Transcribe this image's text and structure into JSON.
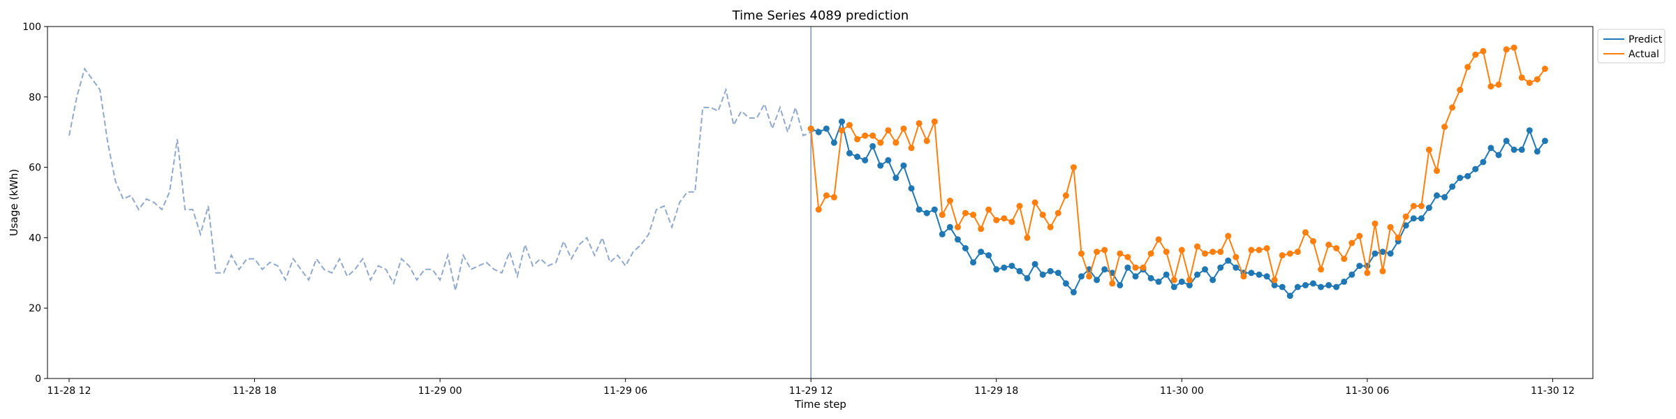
{
  "chart_data": {
    "type": "line",
    "title": "Time Series 4089 prediction",
    "xlabel": "Time step",
    "ylabel": "Usage (kWh)",
    "ylim": [
      0,
      100
    ],
    "yticks": [
      0,
      20,
      40,
      60,
      80,
      100
    ],
    "xlim": [
      "2024-11-28 11:18",
      "2024-11-30 13:18"
    ],
    "xticks": [
      "2024-11-28 12:00",
      "2024-11-28 18:00",
      "2024-11-29 00:00",
      "2024-11-29 06:00",
      "2024-11-29 12:00",
      "2024-11-29 18:00",
      "2024-11-30 00:00",
      "2024-11-30 06:00",
      "2024-11-30 12:00"
    ],
    "xtick_labels": [
      "11-28 12",
      "11-28 18",
      "11-29 00",
      "11-29 06",
      "11-29 12",
      "11-29 18",
      "11-30 00",
      "11-30 06",
      "11-30 12"
    ],
    "x_start": "2024-11-28 12:00",
    "x_step_minutes": 15,
    "forecast_start": "2024-11-29 12:00",
    "legend_position": "top-right",
    "grid": false,
    "colors": {
      "history": "#8fa8cc",
      "predict": "#1f77b4",
      "actual": "#ff7f0e",
      "divider": "#7b93c4"
    },
    "history": [
      69,
      80,
      88,
      85,
      82,
      67,
      56,
      51,
      52,
      48,
      51,
      50,
      48,
      53,
      68,
      48,
      48,
      41,
      49,
      30,
      30,
      35,
      31,
      34,
      34,
      31,
      33,
      32,
      28,
      34,
      31,
      28,
      34,
      31,
      30,
      34,
      29,
      31,
      34,
      28,
      32,
      31,
      27,
      34,
      32,
      28,
      31,
      31,
      28,
      35,
      25,
      35,
      31,
      32,
      33,
      31,
      30,
      36,
      29,
      38,
      32,
      34,
      32,
      33,
      39,
      34,
      38,
      40,
      35,
      40,
      33,
      35,
      32,
      36,
      38,
      41,
      48,
      49,
      43,
      50,
      53,
      53,
      77,
      77,
      76,
      82,
      72,
      76,
      74,
      74,
      78,
      71,
      77,
      70,
      77,
      69,
      70,
      71
    ],
    "series": [
      {
        "name": "Predict",
        "values": [
          71,
          70,
          71,
          67,
          73,
          64,
          63,
          62,
          66,
          60.5,
          62,
          57,
          60.5,
          54,
          48,
          47,
          48,
          41,
          43,
          39.5,
          37,
          33,
          36,
          35,
          31,
          31.5,
          32,
          30.5,
          28.5,
          32.5,
          29.5,
          30.5,
          30,
          27,
          24.5,
          29,
          31,
          28,
          31,
          30,
          26.5,
          31.5,
          29,
          31,
          28.5,
          27.5,
          29.5,
          26,
          27.5,
          26.5,
          29.5,
          31,
          28,
          31.5,
          33.5,
          31.5,
          30,
          30,
          29.5,
          29,
          26.5,
          26,
          23.5,
          26,
          26.5,
          27,
          26,
          26.5,
          26,
          27.5,
          29.5,
          32,
          32,
          35.5,
          36,
          35.5,
          39,
          43.5,
          45.5,
          45.5,
          48.5,
          52,
          51.5,
          54.5,
          57,
          57.5,
          59.5,
          61.5,
          65.5,
          63.5,
          67.5,
          65,
          65,
          70.5,
          64.5,
          67.5
        ]
      },
      {
        "name": "Actual",
        "values": [
          71,
          48,
          52,
          51.5,
          70.5,
          72,
          68,
          69,
          69,
          67,
          70.5,
          67,
          71,
          65.5,
          72.5,
          67.5,
          73,
          46.5,
          50.5,
          43,
          47,
          46.5,
          42.5,
          48,
          45,
          45.5,
          44.5,
          49,
          40,
          50,
          46.5,
          43,
          47,
          52,
          60,
          35.5,
          29,
          36,
          36.5,
          27,
          35.5,
          34.5,
          31.5,
          31.5,
          35.5,
          39.5,
          36,
          28,
          36.5,
          28,
          37.5,
          35.5,
          36,
          36,
          40.5,
          34.5,
          29,
          36.5,
          36.5,
          37,
          28,
          35,
          35.5,
          36,
          41.5,
          39,
          31,
          38,
          37,
          34,
          38.5,
          40.5,
          30,
          44,
          30.5,
          43,
          40,
          46,
          49,
          49,
          65,
          59,
          71.5,
          77,
          82,
          88.5,
          92,
          93,
          83,
          83.5,
          93.5,
          94,
          85.5,
          84,
          85,
          88
        ]
      }
    ]
  }
}
